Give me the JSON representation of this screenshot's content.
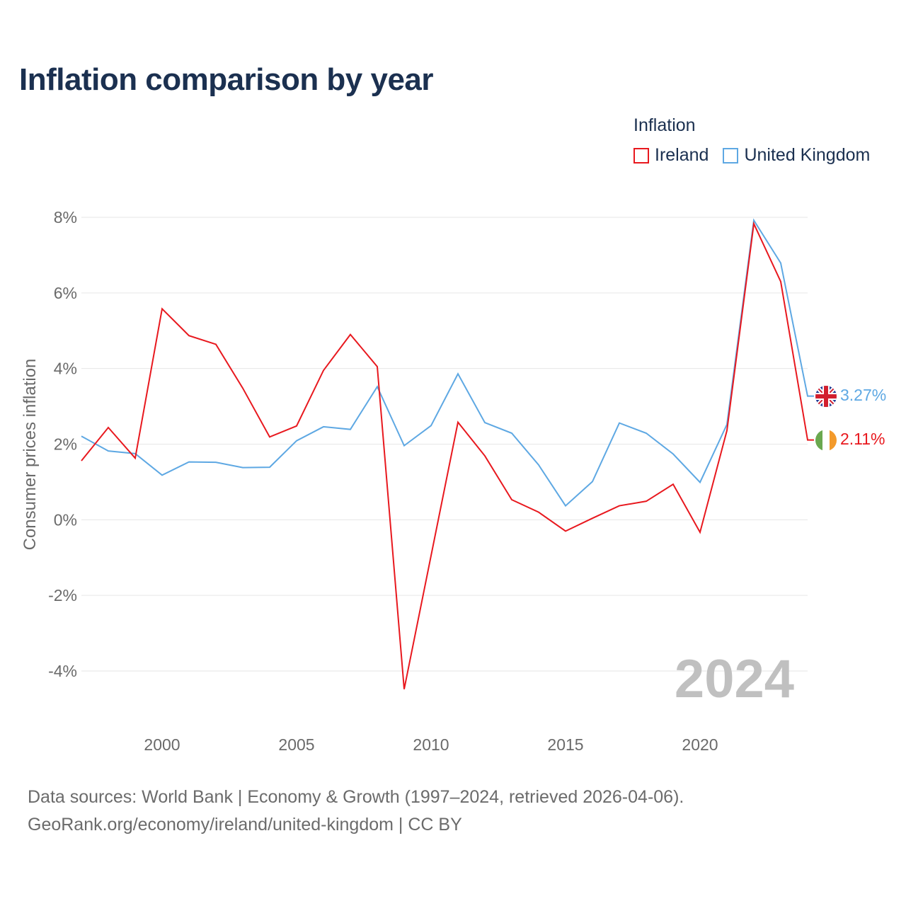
{
  "title": "Inflation comparison by year",
  "legend": {
    "title": "Inflation",
    "items": [
      {
        "label": "Ireland",
        "color": "#e8181e"
      },
      {
        "label": "United Kingdom",
        "color": "#5ea8e3"
      }
    ]
  },
  "chart_data": {
    "type": "line",
    "title": "Inflation comparison by year",
    "xlabel": "",
    "ylabel": "Consumer prices inflation",
    "x": [
      1997,
      1998,
      1999,
      2000,
      2001,
      2002,
      2003,
      2004,
      2005,
      2006,
      2007,
      2008,
      2009,
      2010,
      2011,
      2012,
      2013,
      2014,
      2015,
      2016,
      2017,
      2018,
      2019,
      2020,
      2021,
      2022,
      2023,
      2024
    ],
    "series": [
      {
        "name": "Ireland",
        "color": "#e8181e",
        "values": [
          1.56,
          2.44,
          1.63,
          5.58,
          4.87,
          4.64,
          3.48,
          2.19,
          2.48,
          3.95,
          4.9,
          4.05,
          -4.48,
          -0.95,
          2.58,
          1.69,
          0.53,
          0.2,
          -0.3,
          0.04,
          0.37,
          0.49,
          0.94,
          -0.33,
          2.36,
          7.83,
          6.3,
          2.11
        ]
      },
      {
        "name": "United Kingdom",
        "color": "#5ea8e3",
        "values": [
          2.21,
          1.82,
          1.75,
          1.18,
          1.53,
          1.52,
          1.38,
          1.39,
          2.09,
          2.46,
          2.39,
          3.52,
          1.96,
          2.49,
          3.86,
          2.57,
          2.29,
          1.45,
          0.37,
          1.01,
          2.56,
          2.29,
          1.74,
          0.99,
          2.52,
          7.92,
          6.79,
          3.27
        ]
      }
    ],
    "xticks": [
      2000,
      2005,
      2010,
      2015,
      2020
    ],
    "xtick_labels": [
      "2000",
      "2005",
      "2010",
      "2015",
      "2020"
    ],
    "yticks": [
      -4,
      -2,
      0,
      2,
      4,
      6,
      8
    ],
    "ytick_labels": [
      "-4%",
      "-2%",
      "0%",
      "2%",
      "4%",
      "6%",
      "8%"
    ],
    "xlim": [
      1997,
      2024
    ],
    "ylim": [
      -4,
      8
    ],
    "grid": true,
    "end_labels": [
      {
        "series": "United Kingdom",
        "text": "3.27%",
        "flag": "uk-flag-icon"
      },
      {
        "series": "Ireland",
        "text": "2.11%",
        "flag": "ireland-flag-icon"
      }
    ],
    "watermark": "2024"
  },
  "footer": {
    "line1": "Data sources: World Bank | Economy & Growth (1997–2024, retrieved 2026-04-06).",
    "line2": "GeoRank.org/economy/ireland/united-kingdom | CC BY"
  }
}
